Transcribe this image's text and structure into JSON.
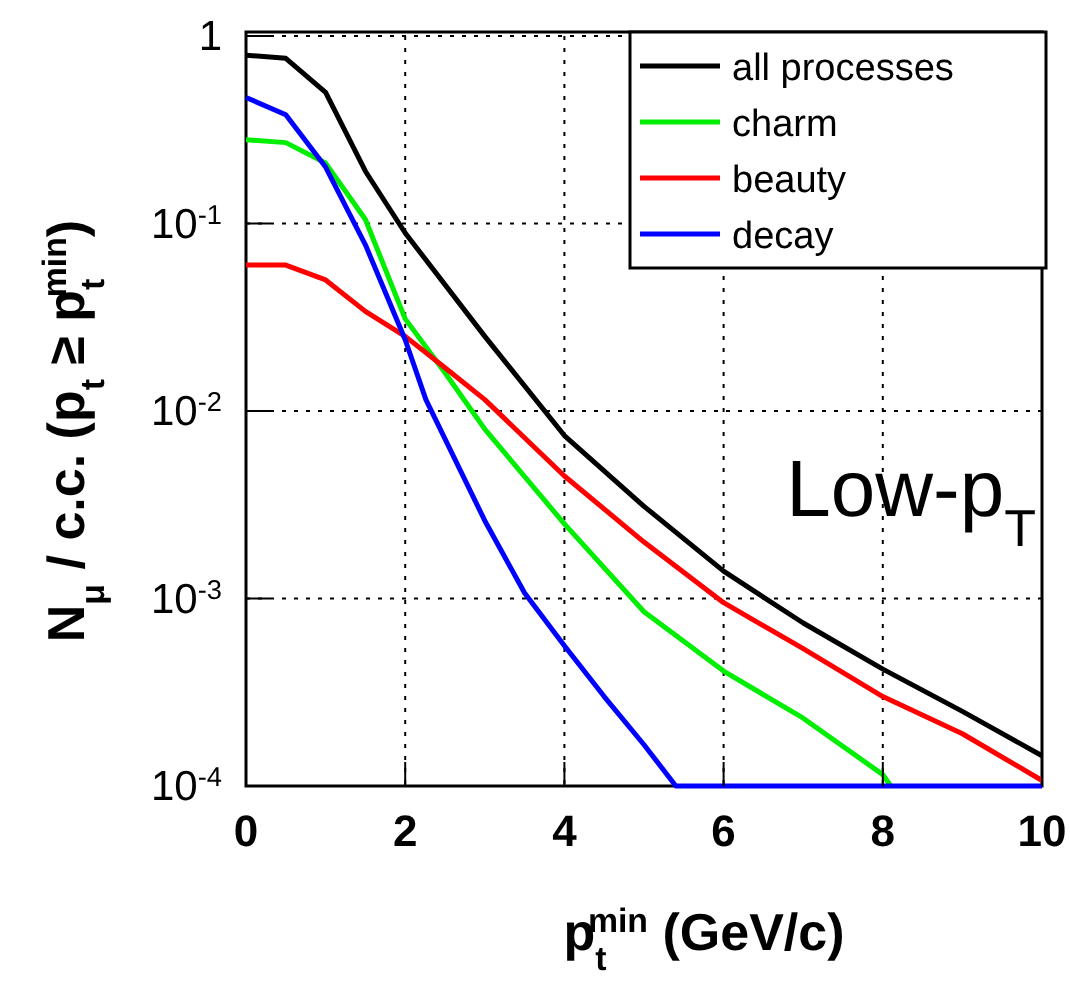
{
  "chart_data": {
    "type": "line",
    "xlabel": "p$_{t}$$^{min}$ (GeV/c)",
    "ylabel": "N$_{μ}$ / c.c. (p$_{t}$ ≥ p$_{t}$$^{min}$)",
    "annotations": [
      "Low-p$_{T}$"
    ],
    "xlim": [
      0,
      10
    ],
    "xticks": [
      0,
      2,
      4,
      6,
      8,
      10
    ],
    "ylim": [
      0.0001,
      1
    ],
    "yticks": [
      {
        "value": 0.0001,
        "label": "10$^{-4}$"
      },
      {
        "value": 0.001,
        "label": "10$^{-3}$"
      },
      {
        "value": 0.01,
        "label": "10$^{-2}$"
      },
      {
        "value": 0.1,
        "label": "10$^{-1}$"
      },
      1
    ],
    "log": "y",
    "grid": true,
    "legend": "top right",
    "marker": "none",
    "line_style": "solid",
    "series": [
      {
        "name": "all processes",
        "color": "#000000",
        "x": [
          0,
          0.5,
          1,
          1.5,
          2,
          3,
          4,
          5,
          6,
          7,
          8,
          9,
          10
        ],
        "values": [
          0.79,
          0.76,
          0.5,
          0.19,
          0.089,
          0.025,
          0.0074,
          0.0031,
          0.0014,
          0.00074,
          0.00042,
          0.00025,
          0.000145
        ]
      },
      {
        "name": "charm",
        "color": "#00ee00",
        "x": [
          0,
          0.5,
          1,
          1.5,
          2,
          2.5,
          3,
          4,
          5,
          6,
          7,
          8,
          8.1
        ],
        "values": [
          0.28,
          0.27,
          0.21,
          0.105,
          0.031,
          0.016,
          0.008,
          0.0025,
          0.00085,
          0.00041,
          0.00023,
          0.000115,
          0.0001
        ]
      },
      {
        "name": "beauty",
        "color": "#ff0000",
        "x": [
          0,
          0.5,
          1,
          1.5,
          2,
          2.5,
          3,
          4,
          5,
          6,
          7,
          8,
          9,
          10
        ],
        "values": [
          0.06,
          0.06,
          0.05,
          0.034,
          0.025,
          0.017,
          0.0115,
          0.0045,
          0.002,
          0.00095,
          0.00054,
          0.0003,
          0.00019,
          0.000107
        ]
      },
      {
        "name": "decay",
        "color": "#0000ff",
        "x": [
          0,
          0.5,
          1,
          1.5,
          2,
          2.26,
          3,
          3.5,
          4,
          4.5,
          5,
          5.4,
          10
        ],
        "values": [
          0.47,
          0.38,
          0.2,
          0.077,
          0.024,
          0.0115,
          0.0026,
          0.00107,
          0.00056,
          0.0003,
          0.000166,
          0.0001,
          0.0001
        ]
      }
    ]
  }
}
